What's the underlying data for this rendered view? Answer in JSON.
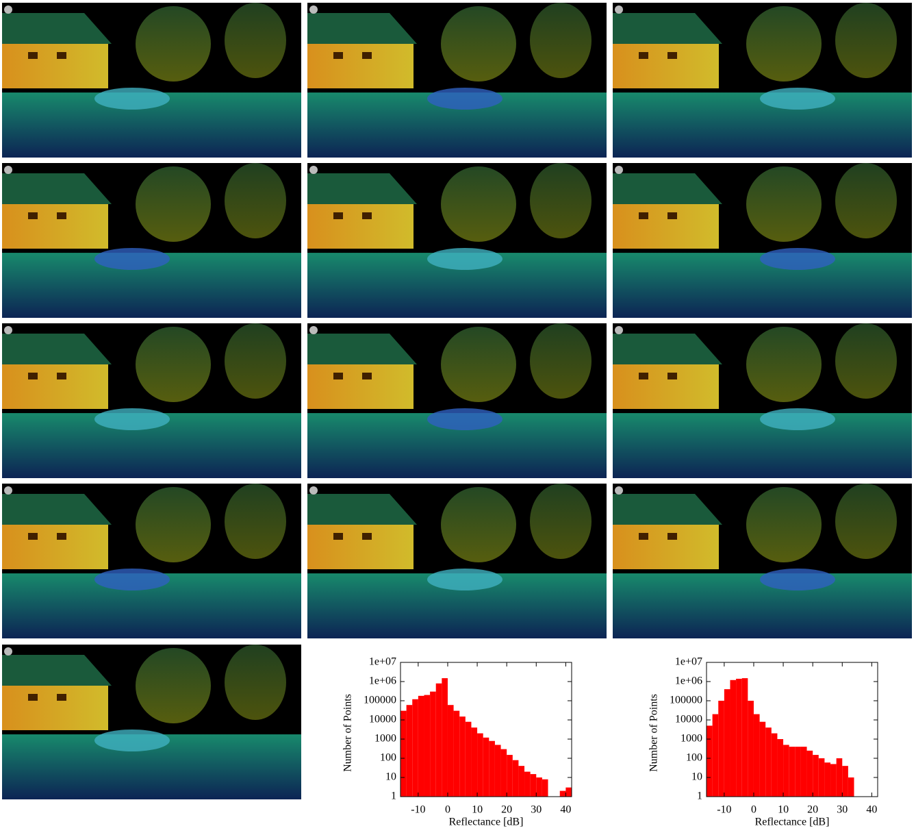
{
  "chart_data": [
    {
      "type": "histogram",
      "xlabel": "Reflectance [dB]",
      "ylabel": "Number of Points",
      "color": "#ff0000",
      "log_y": true,
      "bins": [
        -16,
        -14,
        -12,
        -10,
        -8,
        -6,
        -4,
        -2,
        0,
        2,
        4,
        6,
        8,
        10,
        12,
        14,
        16,
        18,
        20,
        22,
        24,
        26,
        28,
        30,
        32,
        34,
        36,
        38,
        40,
        42
      ],
      "values": [
        30000,
        60000,
        120000,
        180000,
        200000,
        300000,
        800000,
        1500000,
        60000,
        30000,
        15000,
        8000,
        4000,
        2000,
        1200,
        800,
        500,
        300,
        150,
        80,
        40,
        20,
        15,
        10,
        8,
        1,
        1,
        2,
        3
      ],
      "xlim": [
        -16,
        42
      ],
      "xticks": [
        -10,
        0,
        10,
        20,
        30,
        40
      ],
      "ylim": [
        1,
        10000000
      ],
      "yticks": [
        1,
        10,
        100,
        1000,
        10000,
        100000,
        {
          "value": 1000000,
          "label": "1e+06"
        },
        {
          "value": 10000000,
          "label": "1e+07"
        }
      ]
    },
    {
      "type": "histogram",
      "xlabel": "Reflectance [dB]",
      "ylabel": "Number of Points",
      "color": "#ff0000",
      "log_y": true,
      "bins": [
        -16,
        -14,
        -12,
        -10,
        -8,
        -6,
        -4,
        -2,
        0,
        2,
        4,
        6,
        8,
        10,
        12,
        14,
        16,
        18,
        20,
        22,
        24,
        26,
        28,
        30,
        32,
        34,
        36,
        38,
        40,
        42
      ],
      "values": [
        5000,
        20000,
        100000,
        400000,
        1200000,
        1400000,
        1500000,
        100000,
        20000,
        8000,
        4000,
        2000,
        1000,
        500,
        400,
        400,
        400,
        250,
        150,
        100,
        60,
        50,
        100,
        40,
        10,
        1,
        1,
        1,
        1
      ],
      "xlim": [
        -16,
        42
      ],
      "xticks": [
        -10,
        0,
        10,
        20,
        30,
        40
      ],
      "ylim": [
        1,
        10000000
      ],
      "yticks": [
        1,
        10,
        100,
        1000,
        10000,
        100000,
        {
          "value": 1000000,
          "label": "1e+06"
        },
        {
          "value": 10000000,
          "label": "1e+07"
        }
      ]
    }
  ]
}
